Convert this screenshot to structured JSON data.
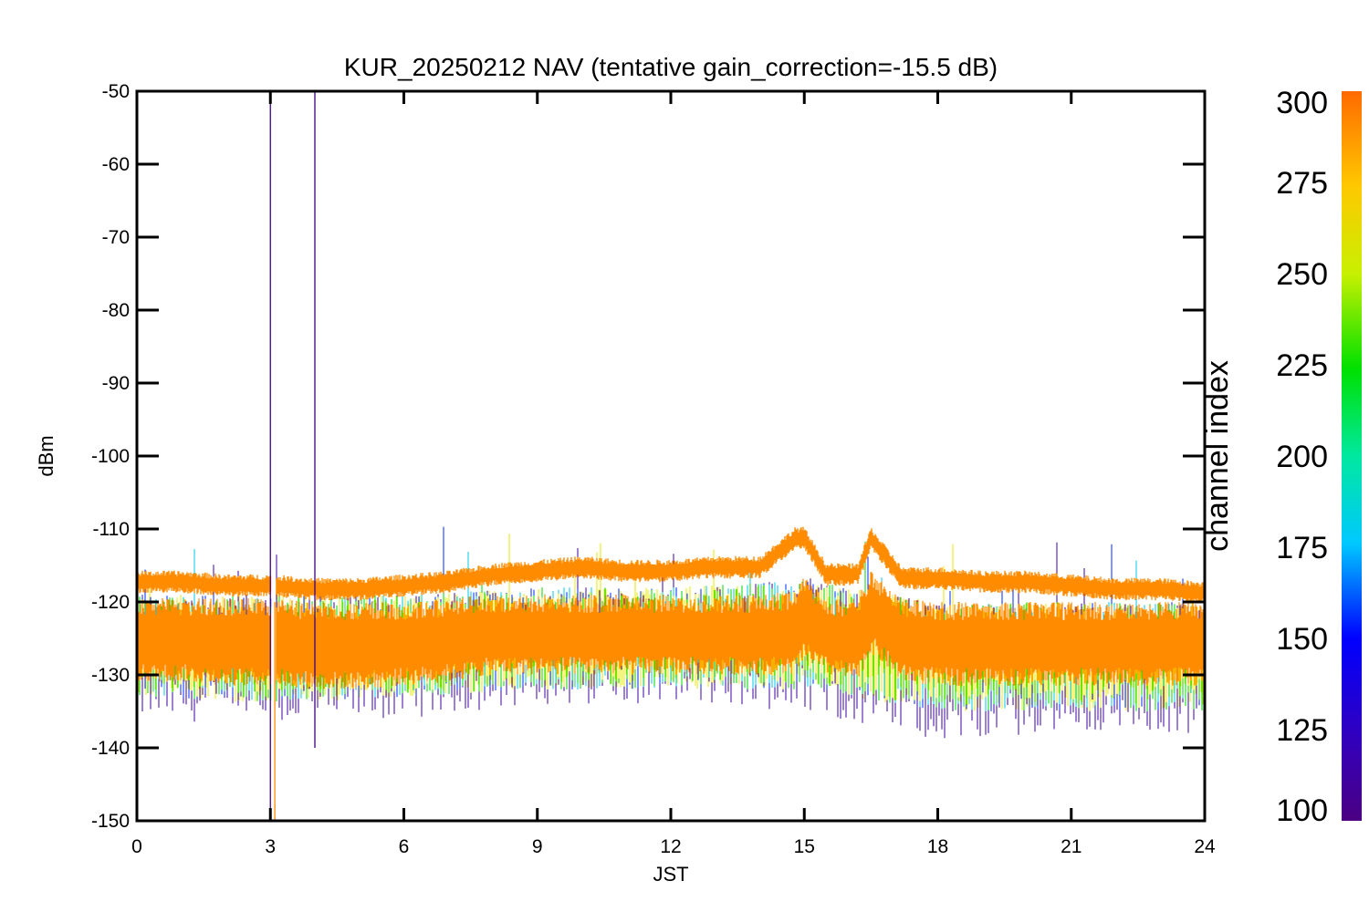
{
  "chart_data": {
    "type": "line",
    "title": "KUR_20250212 NAV (tentative gain_correction=-15.5 dB)",
    "xlabel": "JST",
    "ylabel": "dBm",
    "xlim": [
      0,
      24
    ],
    "ylim": [
      -150,
      -50
    ],
    "xticks": [
      "0",
      "3",
      "6",
      "9",
      "12",
      "15",
      "18",
      "21",
      "24"
    ],
    "yticks": [
      "-50",
      "-60",
      "-70",
      "-80",
      "-90",
      "-100",
      "-110",
      "-120",
      "-130",
      "-140",
      "-150"
    ],
    "grid": false,
    "colorbar": {
      "label": "channel index",
      "range": [
        100,
        300
      ],
      "ticks": [
        "300",
        "275",
        "250",
        "225",
        "200",
        "175",
        "150",
        "125",
        "100"
      ],
      "colormap": "rainbow (purple → blue → cyan → green → yellow → orange)"
    },
    "series": [
      {
        "color": "#ff8c00",
        "channel_range": "≈300",
        "x": [
          0,
          1,
          2,
          3,
          4,
          5,
          6,
          7,
          8,
          9,
          10,
          11,
          12,
          13,
          14,
          14.8,
          15.0,
          15.5,
          16.2,
          16.5,
          17.2,
          18,
          19,
          20,
          21,
          22,
          23,
          24
        ],
        "upper_envelope": [
          -117,
          -117,
          -117.5,
          -117.5,
          -118,
          -118,
          -117.5,
          -117,
          -116,
          -115.5,
          -115,
          -115.5,
          -115.5,
          -115,
          -115,
          -111,
          -111,
          -116,
          -116,
          -111,
          -116.5,
          -116.5,
          -117,
          -117,
          -117.5,
          -118,
          -118,
          -118.5
        ],
        "band_center": [
          -125,
          -125,
          -125,
          -125,
          -125.5,
          -125.5,
          -125.5,
          -125,
          -124.5,
          -124.5,
          -124.5,
          -124.5,
          -124.5,
          -124.5,
          -124.5,
          -124,
          -122,
          -125,
          -125,
          -121,
          -125,
          -125.5,
          -125.5,
          -125.5,
          -125.5,
          -125.5,
          -125.5,
          -125.5
        ],
        "lower_envelope": [
          -131,
          -131,
          -131.5,
          -131.5,
          -132,
          -132,
          -131.5,
          -131,
          -130,
          -130,
          -130,
          -130,
          -130,
          -130,
          -130,
          -130,
          -128,
          -130,
          -131,
          -127,
          -131,
          -131.5,
          -131.5,
          -131.5,
          -131.5,
          -131.5,
          -131.5,
          -131.5
        ]
      },
      {
        "color": "#3c00a0",
        "channel_range": "100–150",
        "x": [
          0,
          3,
          6,
          9,
          12,
          15,
          18,
          21,
          24
        ],
        "y_min": [
          -136,
          -137,
          -136,
          -134,
          -134,
          -135,
          -139,
          -138,
          -138
        ]
      },
      {
        "color": "#00e000",
        "channel_range": "175–250",
        "x": [
          0,
          3,
          6,
          9,
          12,
          15,
          18,
          21,
          24
        ],
        "band": [
          [
            -133,
            -119
          ],
          [
            -134,
            -119
          ],
          [
            -133,
            -119
          ],
          [
            -132,
            -118
          ],
          [
            -132,
            -118
          ],
          [
            -132,
            -117
          ],
          [
            -135,
            -120
          ],
          [
            -135,
            -120
          ],
          [
            -135,
            -120
          ]
        ]
      }
    ],
    "annotations": [
      {
        "text": "vertical spike",
        "x": 3.0,
        "y_range": [
          -150,
          -50
        ],
        "color": "#3c0080"
      },
      {
        "text": "vertical spike",
        "x": 4.0,
        "y_range": [
          -140,
          -50
        ],
        "color": "#3c0080"
      },
      {
        "text": "vertical spike",
        "x": 3.1,
        "y_range": [
          -150,
          -120
        ],
        "color": "#ff8c00"
      }
    ]
  }
}
